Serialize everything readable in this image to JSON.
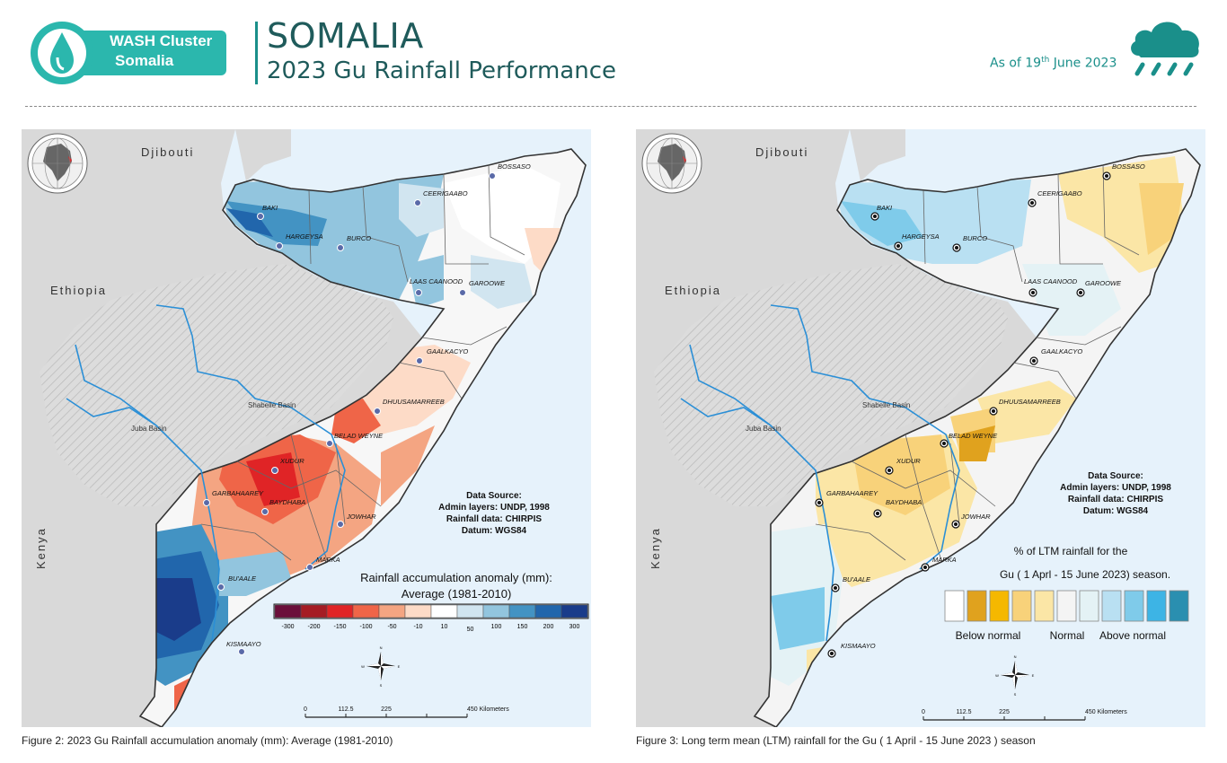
{
  "header": {
    "logo_line1": "WASH Cluster",
    "logo_line2": "Somalia",
    "title": "SOMALIA",
    "subtitle": "2023 Gu Rainfall Performance",
    "date_prefix": "As of 19",
    "date_suffix": "th",
    "date_rest": " June 2023",
    "icon": "rain-cloud-icon"
  },
  "colors": {
    "teal": "#2bb7ad",
    "dark_teal": "#1f5b5b",
    "sea": "#e6f2fb",
    "land": "#d9d9d9"
  },
  "map_common": {
    "countries": {
      "djibouti": "Djibouti",
      "ethiopia": "Ethiopia",
      "kenya": "Kenya"
    },
    "basins": {
      "shabelle": "Shabelle Basin",
      "juba": "Juba Basin"
    },
    "cities": {
      "bossaso": "BOSSASO",
      "ceerigaabo": "CEERIGAABO",
      "baki": "BAKI",
      "hargeysa": "HARGEYSA",
      "burco": "BURCO",
      "laascaanood": "LAAS CAANOOD",
      "garoowe": "GAROOWE",
      "gaalkacyo": "GAALKACYO",
      "dhuusamarreeb": "DHUUSAMARREEB",
      "beladweyne": "BELAD WEYNE",
      "xudur": "XUDUR",
      "garbahaarey": "GARBAHAAREY",
      "baydhaba": "BAYDHABA",
      "jowhar": "JOWHAR",
      "marka": "MARKA",
      "buaale": "BU'AALE",
      "kismaayo": "KISMAAYO"
    },
    "source": {
      "title": "Data Source:",
      "admin": "Admin layers: UNDP, 1998",
      "rain": "Rainfall data: CHIRPIS",
      "datum": "Datum: WGS84"
    },
    "scale": {
      "t0": "0",
      "t1": "112.5",
      "t2": "225",
      "t3": "450 Kilometers"
    },
    "compass": {
      "n": "N",
      "s": "S",
      "e": "E",
      "w": "W"
    }
  },
  "map1": {
    "legend_title1": "Rainfall accumulation anomaly (mm):",
    "legend_title2": "Average (1981-2010)",
    "legend_colors": [
      "#6b0f3a",
      "#a51c24",
      "#e02426",
      "#ef6548",
      "#f4a582",
      "#fddbc7",
      "#ffffff",
      "#d1e5f0",
      "#92c5de",
      "#4393c3",
      "#2166ac",
      "#1a3c8a"
    ],
    "legend_labels": [
      "-300",
      "-200",
      "-150",
      "-100",
      "-50",
      "-10",
      "10",
      "50",
      "100",
      "150",
      "200",
      "300"
    ],
    "caption": "Figure 2: 2023 Gu Rainfall accumulation anomaly (mm): Average (1981-2010)"
  },
  "map2": {
    "legend_title1": "% of LTM rainfall for the",
    "legend_title2": "Gu ( 1 Aprl - 15 June 2023) season.",
    "legend_colors": [
      "#ffffff",
      "#e0a21e",
      "#f5b800",
      "#f8d27a",
      "#fbe6a6",
      "#f4f4f4",
      "#e4f2f5",
      "#b9e0f2",
      "#7fcbea",
      "#3db4e5",
      "#2a8fb0"
    ],
    "legend_below": "Below normal",
    "legend_normal": "Normal",
    "legend_above": "Above normal",
    "caption": "Figure 3: Long term mean (LTM) rainfall for the Gu ( 1 April - 15 June 2023 ) season"
  }
}
